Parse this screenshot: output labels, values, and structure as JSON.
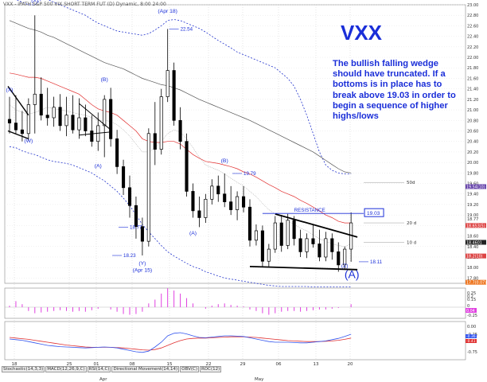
{
  "header": {
    "text": "VXX - iPATH S&P 500 VIX SHORT TERM FUT (D) Dynamic, 8:00 24:00"
  },
  "ticker_title": "VXX",
  "commentary": "The bullish falling wedge should have truncated. If a bottoms is in place has to break above 19.03 in order to begin a sequence of higher highs/lows",
  "bottom_tabs": [
    "Stochastic(14,3,3)",
    "MACD(12,26,9,C)",
    "RSI(14,C)",
    "Directional Movement(14,14)",
    "OBV(C)",
    "ROC(12)"
  ],
  "colors": {
    "wave_labels": "#1a2ed8",
    "ma_red": "#e23030",
    "ma_black": "#555555",
    "bands_blue": "#2233cc",
    "histogram": "#e040e0",
    "macd_blue": "#3355ee",
    "macd_red": "#e03030",
    "axis_tags": [
      "#6644aa",
      "#dd4444",
      "#222222",
      "#dd4444",
      "#ee7722"
    ]
  },
  "chart_data": {
    "type": "candlestick",
    "ylim": [
      17.7,
      23.0
    ],
    "y_ticks": [
      "23.00",
      "22.80",
      "22.60",
      "22.40",
      "22.20",
      "22.00",
      "21.80",
      "21.60",
      "21.40",
      "21.20",
      "21.00",
      "20.80",
      "20.60",
      "20.40",
      "20.20",
      "20.00",
      "19.80",
      "19.60",
      "19.40",
      "19.20",
      "19.00",
      "18.80",
      "18.60",
      "18.40",
      "18.20",
      "18.00",
      "17.80"
    ],
    "x_labels": [
      "18",
      "25",
      "01",
      "08",
      "15",
      "22",
      "29",
      "06",
      "13",
      "20"
    ],
    "month_labels": [
      "Apr",
      "May"
    ],
    "candles": [
      {
        "o": 20.82,
        "h": 21.25,
        "l": 20.55,
        "c": 20.75
      },
      {
        "o": 20.75,
        "h": 21.28,
        "l": 20.55,
        "c": 20.62
      },
      {
        "o": 20.62,
        "h": 20.98,
        "l": 20.4,
        "c": 20.55
      },
      {
        "o": 20.55,
        "h": 21.22,
        "l": 20.42,
        "c": 21.1
      },
      {
        "o": 21.1,
        "h": 22.8,
        "l": 20.55,
        "c": 21.3
      },
      {
        "o": 21.3,
        "h": 21.62,
        "l": 20.8,
        "c": 20.9
      },
      {
        "o": 20.9,
        "h": 21.42,
        "l": 20.7,
        "c": 20.85
      },
      {
        "o": 20.85,
        "h": 21.25,
        "l": 20.68,
        "c": 21.05
      },
      {
        "o": 21.05,
        "h": 21.3,
        "l": 20.6,
        "c": 20.7
      },
      {
        "o": 20.7,
        "h": 21.25,
        "l": 20.5,
        "c": 20.9
      },
      {
        "o": 20.9,
        "h": 21.28,
        "l": 20.55,
        "c": 20.62
      },
      {
        "o": 20.62,
        "h": 21.22,
        "l": 20.45,
        "c": 20.85
      },
      {
        "o": 20.85,
        "h": 21.1,
        "l": 20.5,
        "c": 20.6
      },
      {
        "o": 20.6,
        "h": 20.9,
        "l": 20.3,
        "c": 20.4
      },
      {
        "o": 20.4,
        "h": 20.95,
        "l": 20.22,
        "c": 20.7
      },
      {
        "o": 20.7,
        "h": 21.28,
        "l": 20.1,
        "c": 21.2
      },
      {
        "o": 21.2,
        "h": 21.42,
        "l": 20.3,
        "c": 20.45
      },
      {
        "o": 20.45,
        "h": 20.62,
        "l": 19.78,
        "c": 19.92
      },
      {
        "o": 19.92,
        "h": 20.05,
        "l": 19.38,
        "c": 19.52
      },
      {
        "o": 19.52,
        "h": 19.75,
        "l": 18.95,
        "c": 19.18
      },
      {
        "o": 19.18,
        "h": 19.35,
        "l": 18.55,
        "c": 18.78
      },
      {
        "o": 18.78,
        "h": 18.95,
        "l": 18.23,
        "c": 18.5
      },
      {
        "o": 18.5,
        "h": 20.65,
        "l": 18.4,
        "c": 20.55
      },
      {
        "o": 20.55,
        "h": 21.15,
        "l": 19.95,
        "c": 20.25
      },
      {
        "o": 20.25,
        "h": 21.4,
        "l": 20.15,
        "c": 21.25
      },
      {
        "o": 21.25,
        "h": 22.54,
        "l": 21.15,
        "c": 21.75
      },
      {
        "o": 21.75,
        "h": 21.9,
        "l": 20.7,
        "c": 20.8
      },
      {
        "o": 20.8,
        "h": 21.05,
        "l": 20.25,
        "c": 20.4
      },
      {
        "o": 20.4,
        "h": 20.55,
        "l": 19.35,
        "c": 19.45
      },
      {
        "o": 19.45,
        "h": 19.6,
        "l": 18.95,
        "c": 19.08
      },
      {
        "o": 19.08,
        "h": 19.35,
        "l": 18.77,
        "c": 18.95
      },
      {
        "o": 18.95,
        "h": 19.4,
        "l": 18.85,
        "c": 19.3
      },
      {
        "o": 19.3,
        "h": 19.68,
        "l": 19.2,
        "c": 19.55
      },
      {
        "o": 19.55,
        "h": 19.75,
        "l": 19.25,
        "c": 19.4
      },
      {
        "o": 19.4,
        "h": 19.79,
        "l": 19.15,
        "c": 19.25
      },
      {
        "o": 19.25,
        "h": 19.55,
        "l": 19.0,
        "c": 19.1
      },
      {
        "o": 19.1,
        "h": 19.45,
        "l": 18.9,
        "c": 19.35
      },
      {
        "o": 19.35,
        "h": 19.55,
        "l": 19.05,
        "c": 19.15
      },
      {
        "o": 19.15,
        "h": 19.3,
        "l": 18.4,
        "c": 18.52
      },
      {
        "o": 18.52,
        "h": 18.82,
        "l": 18.42,
        "c": 18.7
      },
      {
        "o": 18.7,
        "h": 18.8,
        "l": 18.02,
        "c": 18.12
      },
      {
        "o": 18.12,
        "h": 18.45,
        "l": 18.02,
        "c": 18.35
      },
      {
        "o": 18.35,
        "h": 18.98,
        "l": 18.28,
        "c": 18.85
      },
      {
        "o": 18.85,
        "h": 19.0,
        "l": 18.3,
        "c": 18.42
      },
      {
        "o": 18.42,
        "h": 19.02,
        "l": 18.35,
        "c": 18.9
      },
      {
        "o": 18.9,
        "h": 18.98,
        "l": 18.42,
        "c": 18.55
      },
      {
        "o": 18.55,
        "h": 18.72,
        "l": 18.2,
        "c": 18.3
      },
      {
        "o": 18.3,
        "h": 18.65,
        "l": 18.18,
        "c": 18.55
      },
      {
        "o": 18.55,
        "h": 18.82,
        "l": 18.38,
        "c": 18.45
      },
      {
        "o": 18.45,
        "h": 18.72,
        "l": 18.12,
        "c": 18.2
      },
      {
        "o": 18.2,
        "h": 18.68,
        "l": 18.12,
        "c": 18.55
      },
      {
        "o": 18.55,
        "h": 18.65,
        "l": 18.15,
        "c": 18.3
      },
      {
        "o": 18.3,
        "h": 18.48,
        "l": 17.92,
        "c": 18.05
      },
      {
        "o": 18.05,
        "h": 18.4,
        "l": 17.98,
        "c": 18.35
      },
      {
        "o": 18.35,
        "h": 19.05,
        "l": 18.11,
        "c": 18.85
      }
    ],
    "ma_red": [
      21.7,
      21.68,
      21.65,
      21.62,
      21.62,
      21.6,
      21.55,
      21.5,
      21.45,
      21.4,
      21.35,
      21.3,
      21.2,
      21.1,
      21.02,
      20.98,
      20.95,
      20.9,
      20.8,
      20.7,
      20.6,
      20.45,
      20.4,
      20.38,
      20.38,
      20.4,
      20.4,
      20.35,
      20.25,
      20.15,
      20.08,
      20.02,
      20.0,
      19.98,
      19.95,
      19.92,
      19.88,
      19.82,
      19.78,
      19.72,
      19.65,
      19.58,
      19.52,
      19.45,
      19.4,
      19.35,
      19.28,
      19.22,
      19.15,
      19.08,
      19.0,
      18.95,
      18.88,
      18.85,
      18.85
    ],
    "ma_black": [
      22.7,
      22.65,
      22.6,
      22.55,
      22.52,
      22.48,
      22.42,
      22.38,
      22.32,
      22.26,
      22.2,
      22.14,
      22.08,
      22.02,
      21.96,
      21.9,
      21.86,
      21.82,
      21.78,
      21.72,
      21.66,
      21.6,
      21.56,
      21.52,
      21.48,
      21.46,
      21.42,
      21.38,
      21.32,
      21.26,
      21.2,
      21.15,
      21.1,
      21.05,
      21.0,
      20.95,
      20.9,
      20.85,
      20.8,
      20.74,
      20.68,
      20.62,
      20.56,
      20.5,
      20.44,
      20.38,
      20.32,
      20.26,
      20.2,
      20.12,
      20.04,
      19.96,
      19.88,
      19.82,
      19.8
    ],
    "ma_thin": [
      21.1,
      21.0,
      20.95,
      20.92,
      20.95,
      21.0,
      21.05,
      21.02,
      21.0,
      20.98,
      20.95,
      20.92,
      20.9,
      20.85,
      20.8,
      20.8,
      20.78,
      20.72,
      20.62,
      20.5,
      20.35,
      20.2,
      20.2,
      20.28,
      20.4,
      20.55,
      20.62,
      20.58,
      20.45,
      20.28,
      20.1,
      19.95,
      19.9,
      19.85,
      19.78,
      19.7,
      19.62,
      19.55,
      19.45,
      19.35,
      19.22,
      19.1,
      19.02,
      18.95,
      18.88,
      18.82,
      18.75,
      18.7,
      18.62,
      18.55,
      18.5,
      18.45,
      18.42,
      18.4,
      18.45
    ],
    "band_upper": [
      23.2,
      23.1,
      23.05,
      23.0,
      23.0,
      23.1,
      23.1,
      23.05,
      23.0,
      22.95,
      22.9,
      22.85,
      22.8,
      22.72,
      22.65,
      22.6,
      22.55,
      22.5,
      22.48,
      22.46,
      22.44,
      22.42,
      22.45,
      22.52,
      22.6,
      22.7,
      22.72,
      22.7,
      22.65,
      22.6,
      22.55,
      22.48,
      22.4,
      22.32,
      22.25,
      22.18,
      22.1,
      22.05,
      22.0,
      21.95,
      21.9,
      21.85,
      21.8,
      21.7,
      21.6,
      21.45,
      21.2,
      20.9,
      20.55,
      20.2,
      19.95,
      19.85,
      19.8,
      19.78,
      19.78
    ],
    "band_lower": [
      20.3,
      20.28,
      20.22,
      20.18,
      20.15,
      20.1,
      20.05,
      20.02,
      20.0,
      19.98,
      19.95,
      19.9,
      19.85,
      19.8,
      19.72,
      19.65,
      19.55,
      19.45,
      19.32,
      19.18,
      19.0,
      18.82,
      18.68,
      18.55,
      18.42,
      18.3,
      18.22,
      18.15,
      18.08,
      18.02,
      17.98,
      17.92,
      17.88,
      17.84,
      17.8,
      17.78,
      17.76,
      17.74,
      17.72,
      17.7,
      17.68,
      17.66,
      17.65,
      17.64,
      17.64,
      17.64,
      17.64,
      17.64,
      17.63,
      17.63,
      17.63,
      17.63,
      17.63,
      17.63,
      17.63
    ],
    "wave_labels": [
      {
        "i": 0,
        "price": 21.35,
        "text": "(X)"
      },
      {
        "i": 4,
        "price": 23.05,
        "text": "(X)"
      },
      {
        "i": 3,
        "price": 20.38,
        "text": "(W)"
      },
      {
        "i": 15,
        "price": 21.55,
        "text": "(B)"
      },
      {
        "i": 14,
        "price": 19.9,
        "text": "(A)"
      },
      {
        "i": 25,
        "price": 22.85,
        "text": "(Apr 18)"
      },
      {
        "i": 21,
        "price": 18.05,
        "text": "(Y)"
      },
      {
        "i": 21,
        "price": 17.92,
        "text": "(Apr 15)"
      },
      {
        "i": 34,
        "price": 20.0,
        "text": "(B)"
      },
      {
        "i": 29,
        "price": 18.62,
        "text": "(A)"
      },
      {
        "i": 53,
        "price": 18.0,
        "text": "(Z)"
      }
    ],
    "big_label": {
      "i": 54,
      "price": 17.8,
      "text": "(A)"
    },
    "price_labels": [
      {
        "i": 27,
        "price": 22.54,
        "text": "22.54"
      },
      {
        "i": 37,
        "price": 19.79,
        "text": "19.79"
      },
      {
        "i": 19,
        "price": 18.77,
        "text": "18.77"
      },
      {
        "i": 18,
        "price": 18.23,
        "text": "18.23"
      },
      {
        "i": 57,
        "price": 18.11,
        "text": "18.11"
      }
    ],
    "resistance": {
      "label": "RESISTANCE",
      "price": 19.03,
      "box": "19.03"
    },
    "ma_labels": [
      {
        "price": 19.62,
        "text": "50d"
      },
      {
        "price": 18.85,
        "text": "20 d"
      },
      {
        "price": 18.48,
        "text": "10 d"
      }
    ],
    "axis_tags": [
      {
        "price": 19.54,
        "text": "19.54(10)"
      },
      {
        "price": 18.8,
        "text": "18.653(5)"
      },
      {
        "price": 18.48,
        "text": "18.4601"
      },
      {
        "price": 18.22,
        "text": "18.2(10)"
      },
      {
        "price": 17.72,
        "text": "17.7(0.07)"
      }
    ],
    "last_price": "18.77",
    "wedge_upper": [
      [
        42,
        19.02
      ],
      [
        55,
        18.58
      ]
    ],
    "wedge_lower": [
      [
        38,
        18.02
      ],
      [
        55,
        17.96
      ]
    ],
    "hist": [
      0.02,
      0.08,
      0.04,
      -0.05,
      -0.08,
      -0.07,
      -0.06,
      -0.05,
      -0.04,
      -0.05,
      -0.06,
      -0.05,
      -0.06,
      -0.04,
      -0.02,
      0.0,
      -0.03,
      -0.06,
      -0.09,
      -0.1,
      -0.09,
      -0.06,
      0.05,
      0.1,
      0.18,
      0.25,
      0.22,
      0.18,
      0.12,
      0.05,
      0.0,
      -0.02,
      0.02,
      0.04,
      0.05,
      0.03,
      0.02,
      0.01,
      -0.03,
      -0.05,
      -0.08,
      -0.1,
      -0.08,
      -0.06,
      -0.05,
      -0.05,
      -0.06,
      -0.05,
      -0.04,
      -0.03,
      -0.03,
      -0.02,
      -0.01,
      0.0,
      0.04
    ],
    "hist_ticks": [
      "0.25",
      "0.2",
      "0.15",
      "0",
      "-0.25"
    ],
    "hist_axis_tag": "0.04",
    "macd_blue": [
      -0.3,
      -0.32,
      -0.34,
      -0.38,
      -0.42,
      -0.46,
      -0.5,
      -0.52,
      -0.54,
      -0.55,
      -0.56,
      -0.57,
      -0.58,
      -0.57,
      -0.56,
      -0.55,
      -0.56,
      -0.58,
      -0.62,
      -0.66,
      -0.7,
      -0.72,
      -0.68,
      -0.55,
      -0.4,
      -0.2,
      -0.12,
      -0.1,
      -0.14,
      -0.2,
      -0.25,
      -0.26,
      -0.24,
      -0.22,
      -0.2,
      -0.2,
      -0.21,
      -0.22,
      -0.26,
      -0.3,
      -0.34,
      -0.38,
      -0.4,
      -0.4,
      -0.4,
      -0.41,
      -0.42,
      -0.42,
      -0.4,
      -0.38,
      -0.36,
      -0.32,
      -0.28,
      -0.22,
      -0.15
    ],
    "macd_red": [
      -0.25,
      -0.27,
      -0.29,
      -0.31,
      -0.34,
      -0.37,
      -0.4,
      -0.43,
      -0.46,
      -0.49,
      -0.51,
      -0.53,
      -0.55,
      -0.56,
      -0.56,
      -0.56,
      -0.56,
      -0.57,
      -0.58,
      -0.6,
      -0.62,
      -0.64,
      -0.65,
      -0.63,
      -0.58,
      -0.5,
      -0.42,
      -0.35,
      -0.3,
      -0.28,
      -0.27,
      -0.27,
      -0.26,
      -0.25,
      -0.24,
      -0.23,
      -0.23,
      -0.23,
      -0.24,
      -0.25,
      -0.27,
      -0.29,
      -0.31,
      -0.33,
      -0.35,
      -0.36,
      -0.37,
      -0.38,
      -0.38,
      -0.38,
      -0.37,
      -0.36,
      -0.34,
      -0.31,
      -0.27
    ],
    "macd_ticks": [
      "0.00",
      "-0.25",
      "-0.75"
    ],
    "macd_tags": [
      "-0.36",
      "-0.41"
    ]
  }
}
